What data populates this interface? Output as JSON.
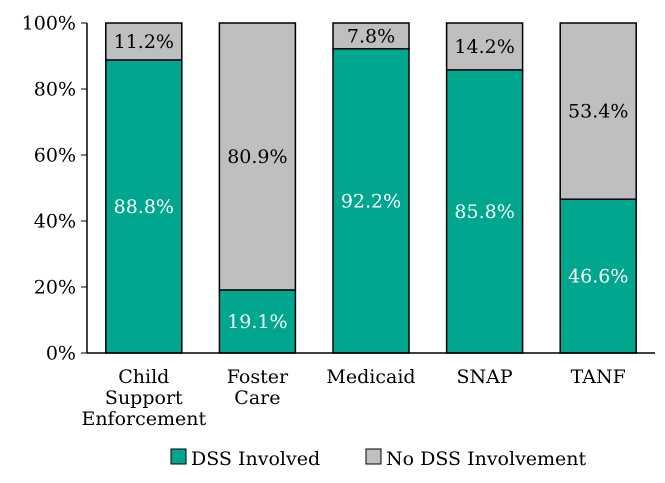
{
  "chart_data": {
    "type": "bar",
    "stacked": true,
    "categories": [
      "Child Support Enforcement",
      "Foster Care",
      "Medicaid",
      "SNAP",
      "TANF"
    ],
    "category_label_lines": [
      [
        "Child",
        "Support",
        "Enforcement"
      ],
      [
        "Foster",
        "Care"
      ],
      [
        "Medicaid"
      ],
      [
        "SNAP"
      ],
      [
        "TANF"
      ]
    ],
    "series": [
      {
        "name": "DSS Involved",
        "color": "#00a78e",
        "values": [
          88.8,
          19.1,
          92.2,
          85.8,
          46.6
        ],
        "labels": [
          "88.8%",
          "19.1%",
          "92.2%",
          "85.8%",
          "46.6%"
        ],
        "label_color": "#ffffff"
      },
      {
        "name": "No DSS Involvement",
        "color": "#bfbfbf",
        "values": [
          11.2,
          80.9,
          7.8,
          14.2,
          53.4
        ],
        "labels": [
          "11.2%",
          "80.9%",
          "7.8%",
          "14.2%",
          "53.4%"
        ],
        "label_color": "#000000"
      }
    ],
    "ylim": [
      0,
      100
    ],
    "yticks": [
      0,
      20,
      40,
      60,
      80,
      100
    ],
    "ytick_labels": [
      "0%",
      "20%",
      "40%",
      "60%",
      "80%",
      "100%"
    ],
    "legend": "bottom",
    "grid": false
  }
}
